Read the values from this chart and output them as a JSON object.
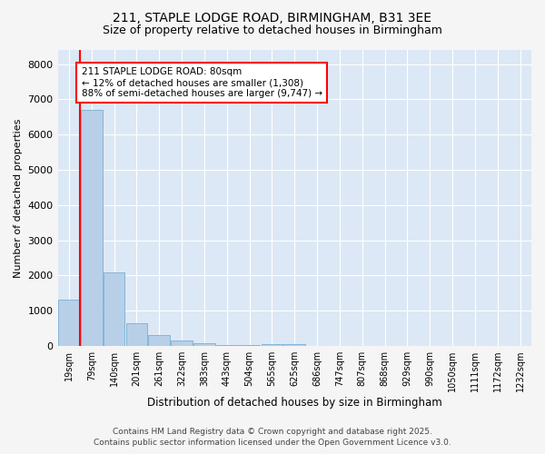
{
  "title1": "211, STAPLE LODGE ROAD, BIRMINGHAM, B31 3EE",
  "title2": "Size of property relative to detached houses in Birmingham",
  "xlabel": "Distribution of detached houses by size in Birmingham",
  "ylabel": "Number of detached properties",
  "categories": [
    "19sqm",
    "79sqm",
    "140sqm",
    "201sqm",
    "261sqm",
    "322sqm",
    "383sqm",
    "443sqm",
    "504sqm",
    "565sqm",
    "625sqm",
    "686sqm",
    "747sqm",
    "807sqm",
    "868sqm",
    "929sqm",
    "990sqm",
    "1050sqm",
    "1111sqm",
    "1172sqm",
    "1232sqm"
  ],
  "values": [
    1308,
    6700,
    2100,
    650,
    320,
    150,
    90,
    40,
    40,
    50,
    50,
    0,
    0,
    0,
    0,
    0,
    0,
    0,
    0,
    0,
    0
  ],
  "bar_color": "#b8cfe8",
  "bar_edge_color": "#7aafd4",
  "vline_color": "red",
  "annotation_text": "211 STAPLE LODGE ROAD: 80sqm\n← 12% of detached houses are smaller (1,308)\n88% of semi-detached houses are larger (9,747) →",
  "annotation_box_facecolor": "white",
  "annotation_box_edgecolor": "red",
  "ylim": [
    0,
    8400
  ],
  "yticks": [
    0,
    1000,
    2000,
    3000,
    4000,
    5000,
    6000,
    7000,
    8000
  ],
  "footer1": "Contains HM Land Registry data © Crown copyright and database right 2025.",
  "footer2": "Contains public sector information licensed under the Open Government Licence v3.0.",
  "fig_facecolor": "#f5f5f5",
  "plot_facecolor": "#dce8f5",
  "grid_color": "white",
  "title1_fontsize": 10,
  "title2_fontsize": 9,
  "xlabel_fontsize": 8.5,
  "ylabel_fontsize": 8,
  "xtick_fontsize": 7,
  "ytick_fontsize": 8,
  "footer_fontsize": 6.5,
  "annotation_fontsize": 7.5
}
